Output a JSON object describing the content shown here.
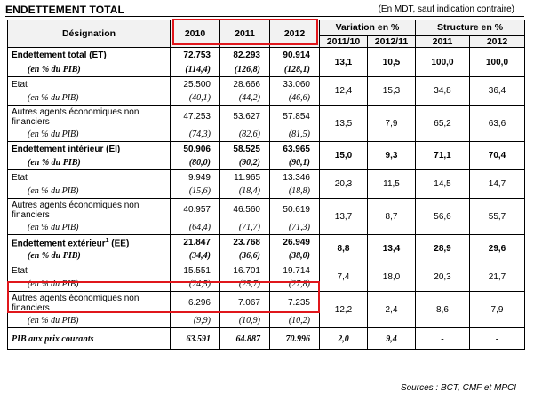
{
  "header": {
    "title": "ENDETTEMENT TOTAL",
    "unit_note": "(En MDT, sauf indication contraire)"
  },
  "columns": {
    "designation": "Désignation",
    "years": [
      "2010",
      "2011",
      "2012"
    ],
    "variation_label": "Variation en %",
    "variation_periods": [
      "2011/10",
      "2012/11"
    ],
    "structure_label": "Structure en %",
    "structure_years": [
      "2011",
      "2012"
    ]
  },
  "rows": {
    "et": {
      "label": "Endettement total (ET)",
      "v2010": "72.753",
      "v2011": "82.293",
      "v2012": "90.914",
      "var1": "13,1",
      "var2": "10,5",
      "s2011": "100,0",
      "s2012": "100,0"
    },
    "et_pib": {
      "label": "(en % du PIB)",
      "v2010": "(114,4)",
      "v2011": "(126,8)",
      "v2012": "(128,1)"
    },
    "etat": {
      "label": "Etat",
      "v2010": "25.500",
      "v2011": "28.666",
      "v2012": "33.060",
      "var1": "12,4",
      "var2": "15,3",
      "s2011": "34,8",
      "s2012": "36,4"
    },
    "etat_pib": {
      "label": "(en % du PIB)",
      "v2010": "(40,1)",
      "v2011": "(44,2)",
      "v2012": "(46,6)"
    },
    "autres": {
      "label": "Autres agents économiques non financiers",
      "v2010": "47.253",
      "v2011": "53.627",
      "v2012": "57.854",
      "var1": "13,5",
      "var2": "7,9",
      "s2011": "65,2",
      "s2012": "63,6"
    },
    "autres_pib": {
      "label": "(en % du PIB)",
      "v2010": "(74,3)",
      "v2011": "(82,6)",
      "v2012": "(81,5)"
    },
    "ei": {
      "label": "Endettement intérieur (EI)",
      "v2010": "50.906",
      "v2011": "58.525",
      "v2012": "63.965",
      "var1": "15,0",
      "var2": "9,3",
      "s2011": "71,1",
      "s2012": "70,4"
    },
    "ei_pib": {
      "label": "(en % du PIB)",
      "v2010": "(80,0)",
      "v2011": "(90,2)",
      "v2012": "(90,1)"
    },
    "ei_etat": {
      "label": "Etat",
      "v2010": "9.949",
      "v2011": "11.965",
      "v2012": "13.346",
      "var1": "20,3",
      "var2": "11,5",
      "s2011": "14,5",
      "s2012": "14,7"
    },
    "ei_etat_pib": {
      "label": "(en % du PIB)",
      "v2010": "(15,6)",
      "v2011": "(18,4)",
      "v2012": "(18,8)"
    },
    "ei_autres": {
      "label": "Autres agents économiques non financiers",
      "v2010": "40.957",
      "v2011": "46.560",
      "v2012": "50.619",
      "var1": "13,7",
      "var2": "8,7",
      "s2011": "56,6",
      "s2012": "55,7"
    },
    "ei_autres_pib": {
      "label": "(en % du PIB)",
      "v2010": "(64,4)",
      "v2011": "(71,7)",
      "v2012": "(71,3)"
    },
    "ee": {
      "label": "Endettement extérieur",
      "footnote": "1",
      "label_suffix": " (EE)",
      "v2010": "21.847",
      "v2011": "23.768",
      "v2012": "26.949",
      "var1": "8,8",
      "var2": "13,4",
      "s2011": "28,9",
      "s2012": "29,6"
    },
    "ee_pib": {
      "label": "(en % du PIB)",
      "v2010": "(34,4)",
      "v2011": "(36,6)",
      "v2012": "(38,0)"
    },
    "ee_etat": {
      "label": "Etat",
      "v2010": "15.551",
      "v2011": "16.701",
      "v2012": "19.714",
      "var1": "7,4",
      "var2": "18,0",
      "s2011": "20,3",
      "s2012": "21,7"
    },
    "ee_etat_pib": {
      "label": "(en % du PIB)",
      "v2010": "(24,5)",
      "v2011": "(25,7)",
      "v2012": "(27,8)"
    },
    "ee_autres": {
      "label": "Autres agents économiques non financiers",
      "v2010": "6.296",
      "v2011": "7.067",
      "v2012": "7.235",
      "var1": "12,2",
      "var2": "2,4",
      "s2011": "8,6",
      "s2012": "7,9"
    },
    "ee_autres_pib": {
      "label": "(en % du PIB)",
      "v2010": "(9,9)",
      "v2011": "(10,9)",
      "v2012": "(10,2)"
    },
    "pib": {
      "label": "PIB aux prix courants",
      "v2010": "63.591",
      "v2011": "64.887",
      "v2012": "70.996",
      "var1": "2,0",
      "var2": "9,4",
      "s2011": "-",
      "s2012": "-"
    }
  },
  "footer": {
    "source": "Sources : BCT, CMF et MPCI"
  },
  "colors": {
    "highlight_box": "#e0161b"
  }
}
